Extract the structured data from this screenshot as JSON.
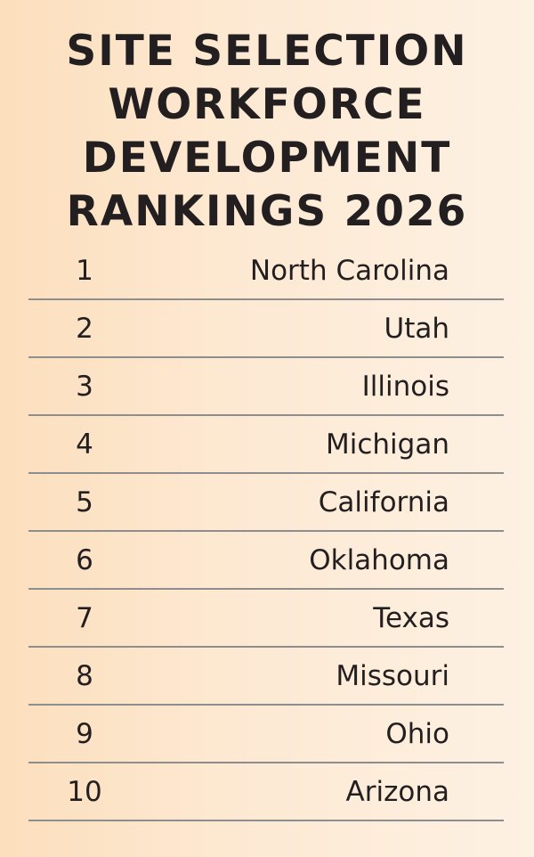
{
  "header": {
    "title_lines": [
      "SITE SELECTION",
      "WORKFORCE",
      "DEVELOPMENT",
      "RANKINGS 2026"
    ]
  },
  "table": {
    "rows": [
      {
        "rank": 1,
        "state": "North Carolina"
      },
      {
        "rank": 2,
        "state": "Utah"
      },
      {
        "rank": 3,
        "state": "Illinois"
      },
      {
        "rank": 4,
        "state": "Michigan"
      },
      {
        "rank": 5,
        "state": "California"
      },
      {
        "rank": 6,
        "state": "Oklahoma"
      },
      {
        "rank": 7,
        "state": "Texas"
      },
      {
        "rank": 8,
        "state": "Missouri"
      },
      {
        "rank": 9,
        "state": "Ohio"
      },
      {
        "rank": 10,
        "state": "Arizona"
      }
    ]
  }
}
